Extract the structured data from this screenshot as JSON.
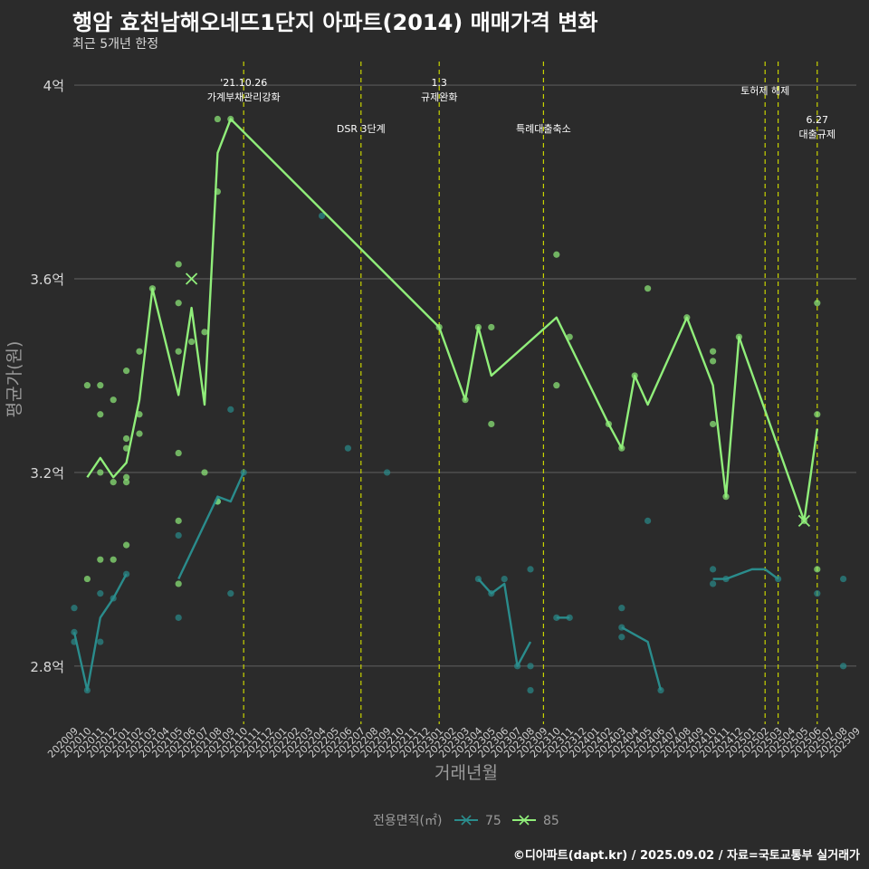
{
  "header": {
    "title": "행암 효천남해오네뜨1단지 아파트(2014) 매매가격 변화",
    "subtitle": "최근 5개년 한정"
  },
  "caption": "©디아파트(dapt.kr) / 2025.09.02 / 자료=국토교통부 실거래가",
  "colors": {
    "background": "#2b2b2b",
    "s75": "#2a8c8c",
    "s85": "#90ee7a",
    "event_line": "#c8d400"
  },
  "chart_data": {
    "type": "line",
    "xlabel": "거래년월",
    "ylabel": "평균가(원)",
    "ylim": [
      2.68,
      4.06
    ],
    "yticks": [
      2.8,
      3.2,
      3.6,
      4.0
    ],
    "ytick_labels": [
      "2.8억",
      "3.2억",
      "3.6억",
      "4억"
    ],
    "grid": true,
    "x_categories": [
      "202009",
      "202010",
      "202011",
      "202012",
      "202101",
      "202102",
      "202103",
      "202104",
      "202105",
      "202106",
      "202107",
      "202108",
      "202109",
      "202110",
      "202111",
      "202112",
      "202201",
      "202202",
      "202203",
      "202204",
      "202205",
      "202206",
      "202207",
      "202208",
      "202209",
      "202210",
      "202211",
      "202212",
      "202301",
      "202302",
      "202303",
      "202304",
      "202305",
      "202306",
      "202307",
      "202308",
      "202309",
      "202310",
      "202311",
      "202312",
      "202401",
      "202402",
      "202403",
      "202404",
      "202405",
      "202406",
      "202407",
      "202408",
      "202409",
      "202410",
      "202411",
      "202412",
      "202501",
      "202502",
      "202503",
      "202504",
      "202505",
      "202506",
      "202507",
      "202508",
      "202509"
    ],
    "legend": {
      "title": "전용면적(㎡)",
      "position": "bottom",
      "entries": [
        "75",
        "85"
      ]
    },
    "series": [
      {
        "name": "75",
        "color": "#2a8c8c",
        "line": [
          [
            "202009",
            2.87
          ],
          [
            "202010",
            2.75
          ],
          [
            "202011",
            2.9
          ],
          [
            "202012",
            2.94
          ],
          [
            "202101",
            2.99
          ],
          null,
          [
            "202105",
            2.98
          ],
          [
            "202108",
            3.15
          ],
          [
            "202109",
            3.14
          ],
          [
            "202110",
            3.2
          ],
          null,
          [
            "202304",
            2.98
          ],
          [
            "202305",
            2.95
          ],
          [
            "202306",
            2.97
          ],
          [
            "202307",
            2.8
          ],
          [
            "202308",
            2.85
          ],
          null,
          [
            "202310",
            2.9
          ],
          [
            "202311",
            2.9
          ],
          null,
          [
            "202403",
            2.88
          ],
          [
            "202405",
            2.85
          ],
          [
            "202406",
            2.75
          ],
          null,
          [
            "202410",
            2.98
          ],
          [
            "202411",
            2.98
          ],
          [
            "202501",
            3.0
          ],
          [
            "202502",
            3.0
          ],
          [
            "202503",
            2.98
          ]
        ],
        "points": [
          [
            "202009",
            2.85
          ],
          [
            "202009",
            2.87
          ],
          [
            "202009",
            2.92
          ],
          [
            "202010",
            2.75
          ],
          [
            "202011",
            2.85
          ],
          [
            "202011",
            2.95
          ],
          [
            "202012",
            2.94
          ],
          [
            "202101",
            2.99
          ],
          [
            "202105",
            2.9
          ],
          [
            "202105",
            3.07
          ],
          [
            "202108",
            3.14
          ],
          [
            "202109",
            2.95
          ],
          [
            "202109",
            3.33
          ],
          [
            "202110",
            3.2
          ],
          [
            "202204",
            3.73
          ],
          [
            "202206",
            3.25
          ],
          [
            "202209",
            3.2
          ],
          [
            "202304",
            2.98
          ],
          [
            "202305",
            2.95
          ],
          [
            "202306",
            2.98
          ],
          [
            "202307",
            2.8
          ],
          [
            "202308",
            2.75
          ],
          [
            "202308",
            2.8
          ],
          [
            "202308",
            3.0
          ],
          [
            "202310",
            2.9
          ],
          [
            "202311",
            2.9
          ],
          [
            "202403",
            2.86
          ],
          [
            "202403",
            2.88
          ],
          [
            "202403",
            2.92
          ],
          [
            "202405",
            3.1
          ],
          [
            "202406",
            2.75
          ],
          [
            "202410",
            2.97
          ],
          [
            "202410",
            3.0
          ],
          [
            "202411",
            2.98
          ],
          [
            "202503",
            2.98
          ],
          [
            "202506",
            2.95
          ],
          [
            "202508",
            2.98
          ],
          [
            "202508",
            2.8
          ]
        ],
        "markers": []
      },
      {
        "name": "85",
        "color": "#90ee7a",
        "line": [
          [
            "202010",
            3.19
          ],
          [
            "202011",
            3.23
          ],
          [
            "202012",
            3.19
          ],
          [
            "202101",
            3.22
          ],
          [
            "202102",
            3.35
          ],
          [
            "202103",
            3.58
          ],
          [
            "202105",
            3.36
          ],
          [
            "202106",
            3.54
          ],
          [
            "202107",
            3.34
          ],
          [
            "202108",
            3.86
          ],
          [
            "202109",
            3.93
          ],
          [
            "202301",
            3.5
          ],
          [
            "202303",
            3.35
          ],
          [
            "202304",
            3.5
          ],
          [
            "202305",
            3.4
          ],
          [
            "202310",
            3.52
          ],
          [
            "202402",
            3.3
          ],
          [
            "202403",
            3.25
          ],
          [
            "202404",
            3.4
          ],
          [
            "202405",
            3.34
          ],
          [
            "202408",
            3.52
          ],
          [
            "202410",
            3.38
          ],
          [
            "202411",
            3.15
          ],
          [
            "202412",
            3.48
          ],
          [
            "202505",
            3.1
          ],
          [
            "202506",
            3.29
          ]
        ],
        "points": [
          [
            "202010",
            3.38
          ],
          [
            "202010",
            2.98
          ],
          [
            "202011",
            3.38
          ],
          [
            "202011",
            3.32
          ],
          [
            "202011",
            3.2
          ],
          [
            "202011",
            3.02
          ],
          [
            "202012",
            3.35
          ],
          [
            "202012",
            3.18
          ],
          [
            "202012",
            3.02
          ],
          [
            "202101",
            3.41
          ],
          [
            "202101",
            3.27
          ],
          [
            "202101",
            3.25
          ],
          [
            "202101",
            3.19
          ],
          [
            "202101",
            3.18
          ],
          [
            "202101",
            3.05
          ],
          [
            "202102",
            3.45
          ],
          [
            "202102",
            3.32
          ],
          [
            "202102",
            3.28
          ],
          [
            "202103",
            3.58
          ],
          [
            "202105",
            3.63
          ],
          [
            "202105",
            3.55
          ],
          [
            "202105",
            3.45
          ],
          [
            "202105",
            3.24
          ],
          [
            "202105",
            3.1
          ],
          [
            "202105",
            2.97
          ],
          [
            "202106",
            3.47
          ],
          [
            "202107",
            3.49
          ],
          [
            "202107",
            3.2
          ],
          [
            "202108",
            3.93
          ],
          [
            "202108",
            3.78
          ],
          [
            "202108",
            3.14
          ],
          [
            "202109",
            3.93
          ],
          [
            "202301",
            3.5
          ],
          [
            "202303",
            3.35
          ],
          [
            "202304",
            3.5
          ],
          [
            "202305",
            3.5
          ],
          [
            "202305",
            3.3
          ],
          [
            "202310",
            3.65
          ],
          [
            "202310",
            3.38
          ],
          [
            "202311",
            3.48
          ],
          [
            "202402",
            3.3
          ],
          [
            "202403",
            3.25
          ],
          [
            "202404",
            3.4
          ],
          [
            "202405",
            3.58
          ],
          [
            "202408",
            3.52
          ],
          [
            "202410",
            3.45
          ],
          [
            "202410",
            3.43
          ],
          [
            "202410",
            3.3
          ],
          [
            "202411",
            3.15
          ],
          [
            "202412",
            3.48
          ],
          [
            "202505",
            3.1
          ],
          [
            "202506",
            3.55
          ],
          [
            "202506",
            3.32
          ],
          [
            "202506",
            3.0
          ]
        ],
        "markers": [
          [
            "202106",
            3.6
          ],
          [
            "202505",
            3.1
          ]
        ]
      }
    ],
    "events": [
      {
        "at": "202110",
        "lines": [
          "'21.10.26",
          "가계부채관리강화"
        ],
        "row": 0
      },
      {
        "at": "202207",
        "lines": [
          "DSR 3단계"
        ],
        "row": 1
      },
      {
        "at": "202301",
        "lines": [
          "1.3",
          "규제완화"
        ],
        "row": 0
      },
      {
        "at": "202309",
        "lines": [
          "특례대출축소"
        ],
        "row": 1
      },
      {
        "at": "202502",
        "lines": [
          "토허제 해제"
        ],
        "row": 0
      },
      {
        "at": "202503",
        "lines": [],
        "row": 0
      },
      {
        "at": "202506",
        "lines": [
          "6.27",
          "대출규제"
        ],
        "row": 1
      }
    ]
  }
}
